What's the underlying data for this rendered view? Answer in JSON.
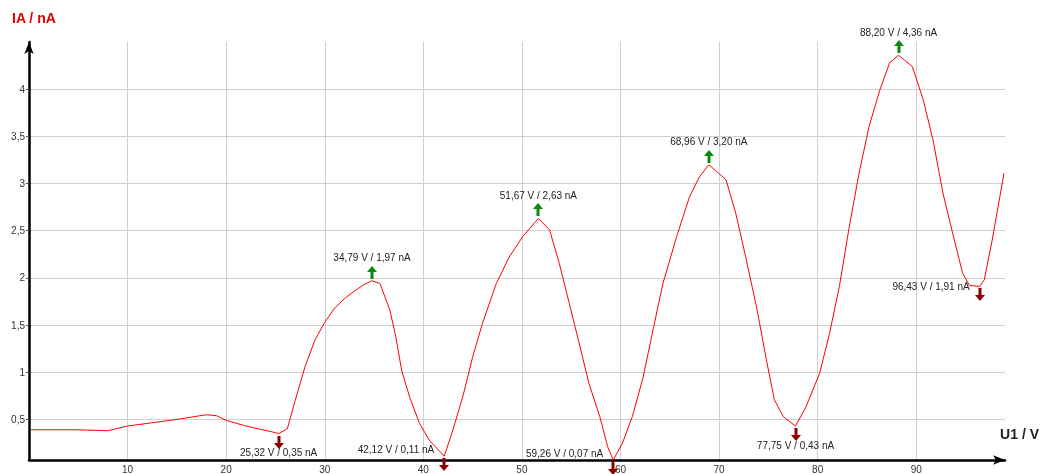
{
  "chart_data": {
    "type": "line",
    "xlabel": "U1 / V",
    "ylabel": "IA / nA",
    "xlim": [
      0,
      99
    ],
    "ylim": [
      0.07,
      4.5
    ],
    "xticks": [
      10,
      20,
      30,
      40,
      50,
      60,
      70,
      80,
      90
    ],
    "yticks": [
      {
        "value": 0.5,
        "label": "0,5"
      },
      {
        "value": 1,
        "label": "1"
      },
      {
        "value": 1.5,
        "label": "1,5"
      },
      {
        "value": 2,
        "label": "2"
      },
      {
        "value": 2.5,
        "label": "2,5"
      },
      {
        "value": 3,
        "label": "3"
      },
      {
        "value": 3.5,
        "label": "3,5"
      },
      {
        "value": 4,
        "label": "4"
      }
    ],
    "grid": true,
    "marker": "none",
    "line_style": "solid",
    "series": [
      {
        "color": "#ff0000",
        "x": [
          0.2,
          5,
          8,
          10,
          15,
          18,
          19,
          20,
          22,
          25,
          25.32,
          26.2,
          27,
          28,
          29,
          30,
          31,
          32,
          33,
          34,
          34.79,
          35.6,
          36.6,
          37.2,
          37.8,
          38.6,
          39.6,
          40.6,
          42.12,
          43,
          44,
          45,
          46,
          47.4,
          48.7,
          50.1,
          51.67,
          52.8,
          53.8,
          54.8,
          55.8,
          56.8,
          57.9,
          58.7,
          59.26,
          60.2,
          61.2,
          62.3,
          63.3,
          64.3,
          65.7,
          67,
          68,
          68.96,
          70.7,
          71.7,
          72.7,
          73.8,
          74.8,
          75.6,
          76.5,
          77.75,
          78.8,
          80.2,
          81.2,
          82.2,
          83.2,
          84.2,
          85.2,
          86.3,
          87.3,
          88.2,
          89.6,
          90.7,
          91.7,
          92.7,
          93.7,
          94.7,
          95.4,
          96.43,
          96.9,
          97.7,
          98.9
        ],
        "values": [
          0.39,
          0.39,
          0.38,
          0.43,
          0.5,
          0.55,
          0.54,
          0.49,
          0.43,
          0.36,
          0.35,
          0.4,
          0.7,
          1.06,
          1.34,
          1.53,
          1.68,
          1.78,
          1.86,
          1.93,
          1.97,
          1.94,
          1.66,
          1.38,
          1.02,
          0.74,
          0.46,
          0.28,
          0.11,
          0.39,
          0.74,
          1.16,
          1.52,
          1.94,
          2.22,
          2.44,
          2.63,
          2.51,
          2.15,
          1.73,
          1.31,
          0.88,
          0.53,
          0.21,
          0.07,
          0.25,
          0.53,
          0.95,
          1.45,
          1.94,
          2.44,
          2.86,
          3.07,
          3.2,
          3.04,
          2.68,
          2.22,
          1.69,
          1.13,
          0.71,
          0.53,
          0.43,
          0.63,
          0.99,
          1.41,
          1.91,
          2.54,
          3.11,
          3.6,
          3.99,
          4.28,
          4.36,
          4.24,
          3.89,
          3.46,
          2.9,
          2.47,
          2.05,
          1.92,
          1.91,
          1.98,
          2.4,
          3.11
        ]
      }
    ],
    "annotations": [
      {
        "text": "25,32 V / 0,35 nA",
        "x": 25.32,
        "y": 0.35
      },
      {
        "text": "34,79 V / 1,97 nA",
        "x": 34.79,
        "y": 1.97
      },
      {
        "text": "42,12 V / 0,11 nA",
        "x": 42.12,
        "y": 0.11
      },
      {
        "text": "51,67 V / 2,63 nA",
        "x": 51.67,
        "y": 2.63
      },
      {
        "text": "59,26 V / 0,07 nA",
        "x": 59.26,
        "y": 0.07
      },
      {
        "text": "68,96 V / 3,20 nA",
        "x": 68.96,
        "y": 3.2
      },
      {
        "text": "77,75 V / 0,43 nA",
        "x": 77.75,
        "y": 0.43
      },
      {
        "text": "88,20 V / 4,36 nA",
        "x": 88.2,
        "y": 4.36
      },
      {
        "text": "96,43 V / 1,91 nA",
        "x": 96.43,
        "y": 1.91
      }
    ]
  }
}
